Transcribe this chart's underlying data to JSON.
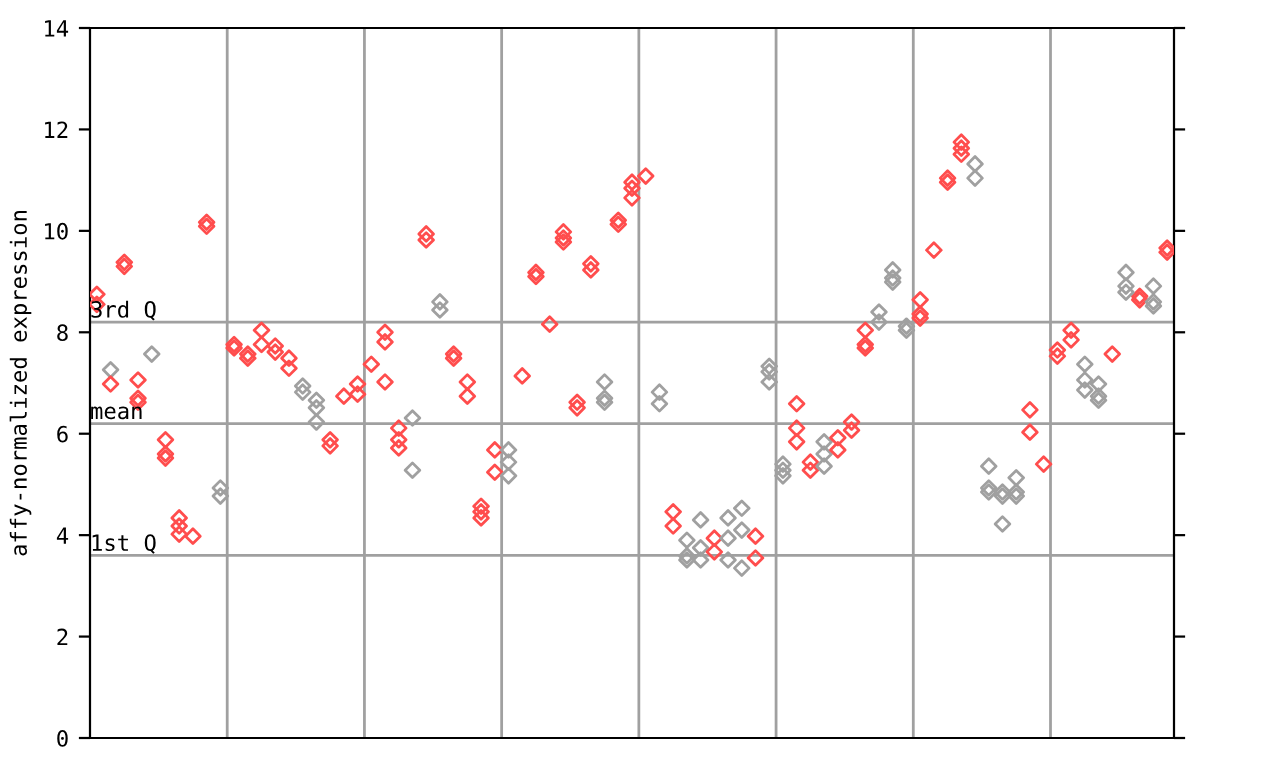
{
  "chart_data": {
    "type": "scatter",
    "ylabel": "affy-normalized expression",
    "categories": [
      null,
      null,
      null,
      null,
      null,
      null,
      null,
      null,
      null,
      null,
      null,
      null,
      null,
      null,
      null,
      null,
      null,
      null,
      null,
      null,
      null,
      null,
      null,
      null,
      null,
      null,
      null,
      null,
      null,
      null,
      null,
      null,
      null,
      null,
      null,
      null,
      null,
      null,
      null,
      null,
      null,
      null,
      null,
      null,
      null,
      null,
      null,
      null,
      null,
      null,
      null,
      null,
      null,
      null,
      null,
      null,
      null,
      null,
      null,
      null,
      null,
      null,
      null,
      null,
      null,
      null,
      null,
      null,
      null,
      null,
      null,
      null,
      null,
      null,
      null,
      null,
      null,
      null,
      null
    ],
    "ylim": [
      0,
      14
    ],
    "yticks": [
      0,
      2,
      4,
      6,
      8,
      10,
      12,
      14
    ],
    "marker": "diamond",
    "ref_lines": [
      {
        "axis": "y",
        "value": 8.2,
        "label": "3rd Q",
        "color": "#a0a0a0"
      },
      {
        "axis": "y",
        "value": 6.2,
        "label": "mean",
        "color": "#a0a0a0"
      },
      {
        "axis": "y",
        "value": 3.6,
        "label": "1st Q",
        "color": "#a0a0a0"
      }
    ],
    "series": [
      {
        "values": [
          8.75,
          7.26,
          9.38,
          7.06,
          7.57,
          5.88,
          4.34,
          3.98,
          10.17,
          4.93,
          7.76,
          7.57,
          8.04,
          7.73,
          7.49,
          6.94,
          6.66,
          5.88,
          6.74,
          6.98,
          7.37,
          8.0,
          6.11,
          6.31,
          9.94,
          8.6,
          7.57,
          7.02,
          4.57,
          5.68,
          5.68,
          7.14,
          9.18,
          8.16,
          9.98,
          6.62,
          9.35,
          7.02,
          10.21,
          10.96,
          11.08,
          6.82,
          4.46,
          3.9,
          4.3,
          3.94,
          4.34,
          4.53,
          3.98,
          7.33,
          5.4,
          6.59,
          5.44,
          5.84,
          5.92,
          6.23,
          8.04,
          8.4,
          9.23,
          8.12,
          8.64,
          9.62,
          11.04,
          11.75,
          11.32,
          5.36,
          4.85,
          5.13,
          6.47,
          5.4,
          7.65,
          8.04,
          7.37,
          6.98,
          7.57,
          9.18,
          8.71,
          8.91,
          9.66
        ],
        "colors": [
          "#ff4d4d",
          "#a0a0a0",
          "#ff4d4d",
          "#ff4d4d",
          "#a0a0a0",
          "#ff4d4d",
          "#ff4d4d",
          "#ff4d4d",
          "#ff4d4d",
          "#a0a0a0",
          "#ff4d4d",
          "#ff4d4d",
          "#ff4d4d",
          "#ff4d4d",
          "#ff4d4d",
          "#a0a0a0",
          "#a0a0a0",
          "#ff4d4d",
          "#ff4d4d",
          "#ff4d4d",
          "#ff4d4d",
          "#ff4d4d",
          "#ff4d4d",
          "#a0a0a0",
          "#ff4d4d",
          "#a0a0a0",
          "#ff4d4d",
          "#ff4d4d",
          "#ff4d4d",
          "#ff4d4d",
          "#a0a0a0",
          "#ff4d4d",
          "#ff4d4d",
          "#ff4d4d",
          "#ff4d4d",
          "#ff4d4d",
          "#ff4d4d",
          "#a0a0a0",
          "#ff4d4d",
          "#ff4d4d",
          "#ff4d4d",
          "#a0a0a0",
          "#ff4d4d",
          "#a0a0a0",
          "#a0a0a0",
          "#ff4d4d",
          "#a0a0a0",
          "#a0a0a0",
          "#ff4d4d",
          "#a0a0a0",
          "#a0a0a0",
          "#ff4d4d",
          "#ff4d4d",
          "#a0a0a0",
          "#ff4d4d",
          "#ff4d4d",
          "#ff4d4d",
          "#a0a0a0",
          "#a0a0a0",
          "#a0a0a0",
          "#ff4d4d",
          "#ff4d4d",
          "#ff4d4d",
          "#ff4d4d",
          "#a0a0a0",
          "#a0a0a0",
          "#a0a0a0",
          "#a0a0a0",
          "#ff4d4d",
          "#ff4d4d",
          "#ff4d4d",
          "#ff4d4d",
          "#a0a0a0",
          "#a0a0a0",
          "#ff4d4d",
          "#a0a0a0",
          "#ff4d4d",
          "#a0a0a0",
          "#ff4d4d"
        ]
      },
      {
        "values": [
          8.55,
          6.98,
          9.3,
          6.7,
          null,
          5.6,
          4.18,
          null,
          10.09,
          4.77,
          7.69,
          7.49,
          7.76,
          7.61,
          7.29,
          6.82,
          6.51,
          5.76,
          null,
          6.78,
          null,
          7.81,
          5.88,
          5.28,
          9.82,
          8.44,
          7.49,
          6.74,
          4.46,
          5.24,
          5.44,
          null,
          9.1,
          null,
          9.86,
          6.51,
          9.23,
          6.7,
          10.13,
          10.84,
          null,
          6.59,
          4.18,
          3.59,
          3.75,
          3.67,
          3.94,
          4.1,
          3.55,
          7.22,
          5.28,
          6.11,
          5.28,
          5.6,
          5.68,
          6.07,
          7.76,
          8.2,
          9.07,
          8.04,
          8.36,
          null,
          10.96,
          11.63,
          11.04,
          4.93,
          4.77,
          4.85,
          6.03,
          null,
          7.53,
          7.85,
          7.06,
          6.74,
          null,
          8.91,
          8.64,
          8.6,
          9.58
        ],
        "colors": [
          "#ff4d4d",
          "#ff4d4d",
          "#ff4d4d",
          "#ff4d4d",
          "#a0a0a0",
          "#ff4d4d",
          "#ff4d4d",
          "#ff4d4d",
          "#ff4d4d",
          "#a0a0a0",
          "#ff4d4d",
          "#ff4d4d",
          "#ff4d4d",
          "#ff4d4d",
          "#ff4d4d",
          "#a0a0a0",
          "#a0a0a0",
          "#ff4d4d",
          "#ff4d4d",
          "#ff4d4d",
          "#ff4d4d",
          "#ff4d4d",
          "#ff4d4d",
          "#a0a0a0",
          "#ff4d4d",
          "#a0a0a0",
          "#ff4d4d",
          "#ff4d4d",
          "#ff4d4d",
          "#ff4d4d",
          "#a0a0a0",
          "#ff4d4d",
          "#ff4d4d",
          "#ff4d4d",
          "#ff4d4d",
          "#ff4d4d",
          "#ff4d4d",
          "#a0a0a0",
          "#ff4d4d",
          "#ff4d4d",
          "#ff4d4d",
          "#a0a0a0",
          "#ff4d4d",
          "#a0a0a0",
          "#a0a0a0",
          "#ff4d4d",
          "#a0a0a0",
          "#a0a0a0",
          "#ff4d4d",
          "#a0a0a0",
          "#a0a0a0",
          "#ff4d4d",
          "#ff4d4d",
          "#a0a0a0",
          "#ff4d4d",
          "#ff4d4d",
          "#ff4d4d",
          "#a0a0a0",
          "#a0a0a0",
          "#a0a0a0",
          "#ff4d4d",
          "#ff4d4d",
          "#ff4d4d",
          "#ff4d4d",
          "#a0a0a0",
          "#a0a0a0",
          "#a0a0a0",
          "#a0a0a0",
          "#ff4d4d",
          "#ff4d4d",
          "#ff4d4d",
          "#ff4d4d",
          "#a0a0a0",
          "#a0a0a0",
          "#ff4d4d",
          "#a0a0a0",
          "#ff4d4d",
          "#a0a0a0",
          "#ff4d4d"
        ]
      },
      {
        "values": [
          null,
          null,
          null,
          6.62,
          null,
          5.52,
          4.02,
          null,
          null,
          null,
          null,
          null,
          null,
          null,
          null,
          null,
          6.23,
          null,
          null,
          null,
          null,
          7.02,
          5.72,
          null,
          null,
          null,
          null,
          null,
          4.34,
          null,
          5.17,
          null,
          null,
          null,
          9.78,
          null,
          null,
          6.62,
          null,
          10.65,
          null,
          null,
          null,
          3.51,
          3.51,
          null,
          3.51,
          3.35,
          null,
          7.02,
          5.17,
          5.84,
          null,
          5.36,
          null,
          null,
          7.69,
          null,
          8.99,
          null,
          8.28,
          null,
          null,
          11.51,
          null,
          4.85,
          4.22,
          4.77,
          null,
          null,
          null,
          null,
          6.86,
          6.66,
          null,
          8.79,
          null,
          8.52,
          null
        ],
        "colors": [
          "#ff4d4d",
          "#ff4d4d",
          "#ff4d4d",
          "#ff4d4d",
          "#a0a0a0",
          "#ff4d4d",
          "#ff4d4d",
          "#ff4d4d",
          "#ff4d4d",
          "#a0a0a0",
          "#ff4d4d",
          "#ff4d4d",
          "#ff4d4d",
          "#ff4d4d",
          "#ff4d4d",
          "#a0a0a0",
          "#a0a0a0",
          "#ff4d4d",
          "#ff4d4d",
          "#ff4d4d",
          "#ff4d4d",
          "#ff4d4d",
          "#ff4d4d",
          "#a0a0a0",
          "#ff4d4d",
          "#a0a0a0",
          "#ff4d4d",
          "#ff4d4d",
          "#ff4d4d",
          "#ff4d4d",
          "#a0a0a0",
          "#ff4d4d",
          "#ff4d4d",
          "#ff4d4d",
          "#ff4d4d",
          "#ff4d4d",
          "#ff4d4d",
          "#a0a0a0",
          "#ff4d4d",
          "#ff4d4d",
          "#ff4d4d",
          "#a0a0a0",
          "#ff4d4d",
          "#a0a0a0",
          "#a0a0a0",
          "#ff4d4d",
          "#a0a0a0",
          "#a0a0a0",
          "#ff4d4d",
          "#a0a0a0",
          "#a0a0a0",
          "#ff4d4d",
          "#ff4d4d",
          "#a0a0a0",
          "#ff4d4d",
          "#ff4d4d",
          "#ff4d4d",
          "#a0a0a0",
          "#a0a0a0",
          "#a0a0a0",
          "#ff4d4d",
          "#ff4d4d",
          "#ff4d4d",
          "#ff4d4d",
          "#a0a0a0",
          "#a0a0a0",
          "#a0a0a0",
          "#a0a0a0",
          "#ff4d4d",
          "#ff4d4d",
          "#ff4d4d",
          "#ff4d4d",
          "#a0a0a0",
          "#a0a0a0",
          "#ff4d4d",
          "#a0a0a0",
          "#ff4d4d",
          "#a0a0a0",
          "#ff4d4d"
        ]
      }
    ]
  }
}
